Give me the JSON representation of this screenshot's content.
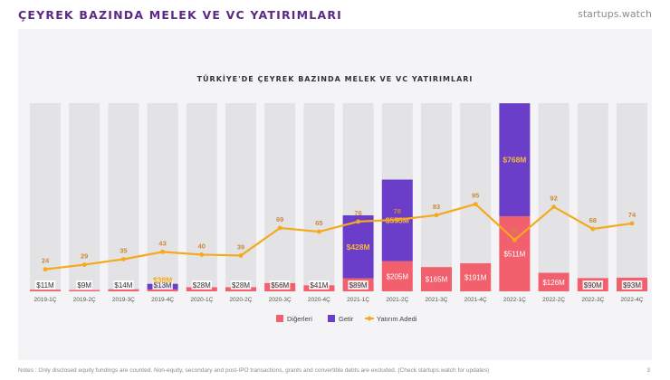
{
  "header": {
    "title": "ÇEYREK BAZINDA MELEK VE VC YATIRIMLARI",
    "brand": "startups.watch"
  },
  "footer": {
    "notes": "Notes : Only disclosed equity fundings are counted. Non-equity, secondary and post-IPO transactions, grants and convertible debts are excluded. (Check startups.watch for updates)",
    "page": "3"
  },
  "colors": {
    "digerleri": "#f2606e",
    "getir": "#6a3ec9",
    "yatirim": "#f5a91c",
    "background_bar": "#e3e3e6"
  },
  "chart_data": {
    "type": "bar",
    "stacked": true,
    "title": "TÜRKİYE'DE ÇEYREK BAZINDA MELEK VE VC YATIRIMLARI",
    "categories": [
      "2019-1Ç",
      "2019-2Ç",
      "2019-3Ç",
      "2019-4Ç",
      "2020-1Ç",
      "2020-2Ç",
      "2020-3Ç",
      "2020-4Ç",
      "2021-1Ç",
      "2021-2Ç",
      "2021-3Ç",
      "2021-4Ç",
      "2022-1Ç",
      "2022-2Ç",
      "2022-3Ç",
      "2022-4Ç"
    ],
    "series": [
      {
        "name": "Diğerleri",
        "values": [
          11,
          9,
          14,
          13,
          28,
          28,
          56,
          41,
          89,
          205,
          165,
          191,
          511,
          126,
          90,
          93
        ],
        "labels": [
          "$11M",
          "$9M",
          "$14M",
          "$13M",
          "$28M",
          "$28M",
          "$56M",
          "$41M",
          "$89M",
          "$205M",
          "$165M",
          "$191M",
          "$511M",
          "$126M",
          "$90M",
          "$93M"
        ]
      },
      {
        "name": "Getir",
        "values": [
          0,
          0,
          0,
          38,
          0,
          0,
          0,
          0,
          428,
          555,
          0,
          0,
          768,
          0,
          0,
          0
        ],
        "labels": [
          "",
          "",
          "",
          "$38M",
          "",
          "",
          "",
          "",
          "$428M",
          "$555M",
          "",
          "",
          "$768M",
          "",
          "",
          ""
        ]
      },
      {
        "name": "Yatırım Adedi",
        "type": "line",
        "axis": "secondary",
        "values": [
          24,
          29,
          35,
          43,
          40,
          39,
          69,
          65,
          76,
          78,
          83,
          95,
          56,
          92,
          68,
          74
        ]
      }
    ],
    "legend": [
      "Diğerleri",
      "Getir",
      "Yatırım Adedi"
    ],
    "legend_position": "bottom",
    "ylim": [
      0,
      1280
    ],
    "y2lim": [
      0,
      205
    ],
    "grid": false
  }
}
